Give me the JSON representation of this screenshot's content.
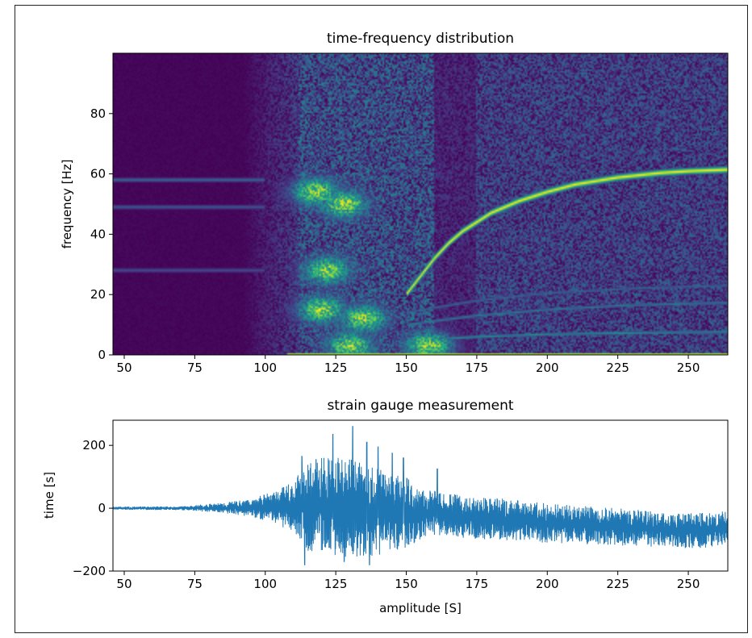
{
  "chart_data": [
    {
      "type": "heatmap",
      "title": "time-frequency distribution",
      "xlabel": "",
      "ylabel": "frequency [Hz]",
      "xlim": [
        46,
        264
      ],
      "ylim": [
        0,
        100
      ],
      "xticks": [
        50,
        75,
        100,
        125,
        150,
        175,
        200,
        225,
        250
      ],
      "yticks": [
        0,
        20,
        40,
        60,
        80
      ],
      "colormap": "viridis",
      "features": {
        "main_chirp": [
          [
            150,
            20
          ],
          [
            155,
            26
          ],
          [
            160,
            32
          ],
          [
            165,
            37
          ],
          [
            170,
            41
          ],
          [
            180,
            47
          ],
          [
            190,
            51
          ],
          [
            200,
            54
          ],
          [
            210,
            56.5
          ],
          [
            225,
            58.8
          ],
          [
            240,
            60.3
          ],
          [
            250,
            60.9
          ],
          [
            264,
            61.4
          ]
        ],
        "low_tones_hz": [
          58,
          49,
          28
        ],
        "harmonics": [
          [
            [
              150,
              4.5
            ],
            [
              175,
              6
            ],
            [
              200,
              6.8
            ],
            [
              230,
              7.3
            ],
            [
              264,
              7.6
            ]
          ],
          [
            [
              150,
              10
            ],
            [
              175,
              13
            ],
            [
              200,
              15
            ],
            [
              230,
              16.5
            ],
            [
              264,
              17.3
            ]
          ],
          [
            [
              150,
              14
            ],
            [
              175,
              18
            ],
            [
              200,
              20.5
            ],
            [
              230,
              22
            ],
            [
              264,
              23
            ]
          ]
        ],
        "hotspots": [
          [
            118,
            54
          ],
          [
            128,
            50
          ],
          [
            122,
            28
          ],
          [
            120,
            15
          ],
          [
            135,
            12
          ],
          [
            130,
            3
          ],
          [
            158,
            3
          ]
        ]
      }
    },
    {
      "type": "line",
      "title": "strain gauge measurement",
      "xlabel": "amplitude [S]",
      "ylabel": "time [s]",
      "xlim": [
        46,
        264
      ],
      "ylim": [
        -200,
        280
      ],
      "xticks": [
        50,
        75,
        100,
        125,
        150,
        175,
        200,
        225,
        250
      ],
      "yticks": [
        -200,
        0,
        200
      ],
      "color": "#1f77b4",
      "envelope": {
        "x": [
          46,
          70,
          85,
          95,
          100,
          105,
          110,
          115,
          125,
          140,
          150,
          155,
          160,
          170,
          180,
          200,
          225,
          250,
          264
        ],
        "upper": [
          5,
          6,
          18,
          30,
          45,
          60,
          90,
          150,
          170,
          130,
          100,
          60,
          55,
          40,
          35,
          15,
          0,
          -15,
          -10
        ],
        "lower": [
          -5,
          -6,
          -15,
          -28,
          -40,
          -55,
          -80,
          -140,
          -160,
          -150,
          -130,
          -105,
          -85,
          -95,
          -100,
          -110,
          -120,
          -130,
          -120
        ]
      },
      "spikes": [
        [
          113,
          165
        ],
        [
          118,
          155
        ],
        [
          124,
          235
        ],
        [
          131,
          260
        ],
        [
          136,
          210
        ],
        [
          140,
          195
        ],
        [
          145,
          175
        ],
        [
          149,
          160
        ],
        [
          161,
          125
        ],
        [
          114,
          -180
        ],
        [
          128,
          -170
        ],
        [
          137,
          -180
        ]
      ]
    }
  ]
}
